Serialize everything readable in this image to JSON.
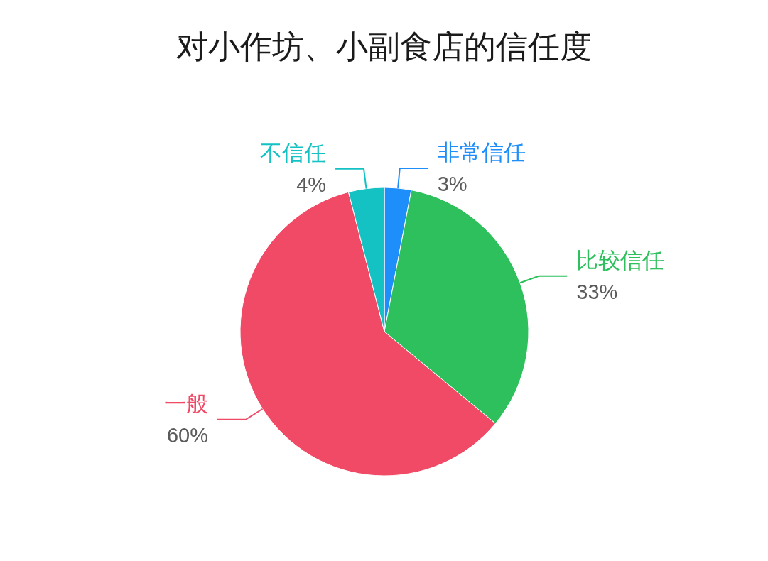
{
  "chart_data": {
    "type": "pie",
    "title": "对小作坊、小副食店的信任度",
    "categories": [
      "非常信任",
      "比较信任",
      "一般",
      "不信任"
    ],
    "values": [
      3,
      33,
      60,
      4
    ],
    "colors": [
      "#1e8ffa",
      "#2ec05c",
      "#f04a66",
      "#14c2c4"
    ],
    "value_labels": [
      "3%",
      "33%",
      "60%",
      "4%"
    ]
  }
}
